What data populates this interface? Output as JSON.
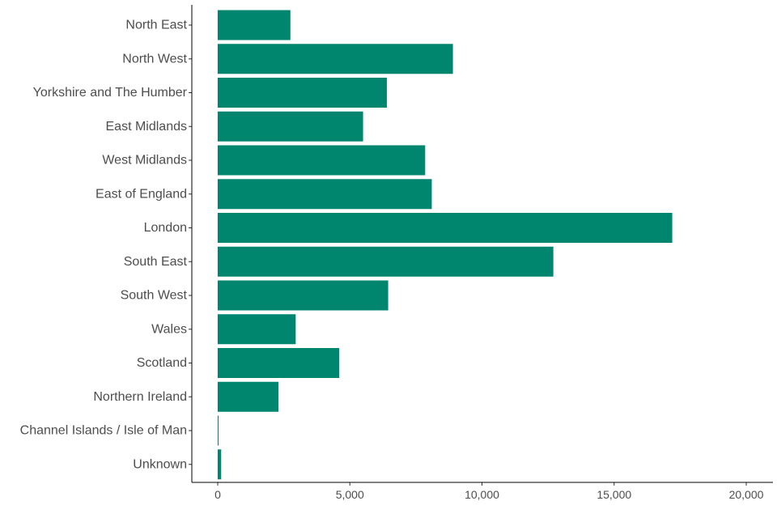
{
  "chart_data": {
    "type": "bar",
    "orientation": "horizontal",
    "categories": [
      "North East",
      "North West",
      "Yorkshire and The Humber",
      "East Midlands",
      "West Midlands",
      "East of England",
      "London",
      "South East",
      "South West",
      "Wales",
      "Scotland",
      "Northern Ireland",
      "Channel Islands / Isle of Man",
      "Unknown"
    ],
    "values": [
      2750,
      8900,
      6400,
      5500,
      7850,
      8100,
      17200,
      12700,
      6450,
      2950,
      4600,
      2300,
      30,
      130
    ],
    "xlim": [
      0,
      20000
    ],
    "x_ticks": [
      0,
      5000,
      10000,
      15000,
      20000
    ],
    "x_tick_labels": [
      "0",
      "5,000",
      "10,000",
      "15,000",
      "20,000"
    ],
    "title": "",
    "xlabel": "",
    "ylabel": "",
    "grid": false,
    "legend": "none",
    "bar_color": "#00856f"
  }
}
